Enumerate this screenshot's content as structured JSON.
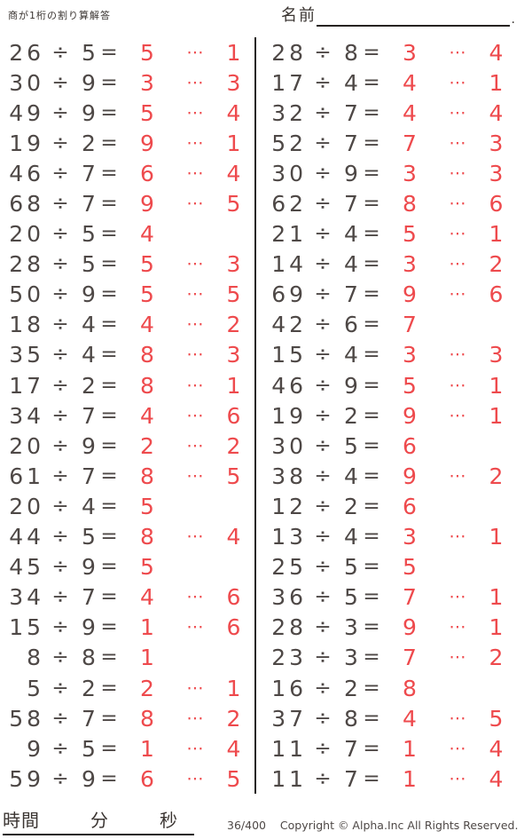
{
  "header": {
    "title": "商が1桁の割り算解答",
    "name_label": "名前",
    "name_line_end": "."
  },
  "symbols": {
    "divide": "÷",
    "equals": "=",
    "dots": "⋯"
  },
  "colors": {
    "ink": "#4e4846",
    "answer_red": "#ee4a4d",
    "line_black": "#262220"
  },
  "problems": {
    "left": [
      {
        "dividend": 26,
        "divisor": 5,
        "quotient": 5,
        "remainder": 1
      },
      {
        "dividend": 30,
        "divisor": 9,
        "quotient": 3,
        "remainder": 3
      },
      {
        "dividend": 49,
        "divisor": 9,
        "quotient": 5,
        "remainder": 4
      },
      {
        "dividend": 19,
        "divisor": 2,
        "quotient": 9,
        "remainder": 1
      },
      {
        "dividend": 46,
        "divisor": 7,
        "quotient": 6,
        "remainder": 4
      },
      {
        "dividend": 68,
        "divisor": 7,
        "quotient": 9,
        "remainder": 5
      },
      {
        "dividend": 20,
        "divisor": 5,
        "quotient": 4,
        "remainder": null
      },
      {
        "dividend": 28,
        "divisor": 5,
        "quotient": 5,
        "remainder": 3
      },
      {
        "dividend": 50,
        "divisor": 9,
        "quotient": 5,
        "remainder": 5
      },
      {
        "dividend": 18,
        "divisor": 4,
        "quotient": 4,
        "remainder": 2
      },
      {
        "dividend": 35,
        "divisor": 4,
        "quotient": 8,
        "remainder": 3
      },
      {
        "dividend": 17,
        "divisor": 2,
        "quotient": 8,
        "remainder": 1
      },
      {
        "dividend": 34,
        "divisor": 7,
        "quotient": 4,
        "remainder": 6
      },
      {
        "dividend": 20,
        "divisor": 9,
        "quotient": 2,
        "remainder": 2
      },
      {
        "dividend": 61,
        "divisor": 7,
        "quotient": 8,
        "remainder": 5
      },
      {
        "dividend": 20,
        "divisor": 4,
        "quotient": 5,
        "remainder": null
      },
      {
        "dividend": 44,
        "divisor": 5,
        "quotient": 8,
        "remainder": 4
      },
      {
        "dividend": 45,
        "divisor": 9,
        "quotient": 5,
        "remainder": null
      },
      {
        "dividend": 34,
        "divisor": 7,
        "quotient": 4,
        "remainder": 6
      },
      {
        "dividend": 15,
        "divisor": 9,
        "quotient": 1,
        "remainder": 6
      },
      {
        "dividend": 8,
        "divisor": 8,
        "quotient": 1,
        "remainder": null
      },
      {
        "dividend": 5,
        "divisor": 2,
        "quotient": 2,
        "remainder": 1
      },
      {
        "dividend": 58,
        "divisor": 7,
        "quotient": 8,
        "remainder": 2
      },
      {
        "dividend": 9,
        "divisor": 5,
        "quotient": 1,
        "remainder": 4
      },
      {
        "dividend": 59,
        "divisor": 9,
        "quotient": 6,
        "remainder": 5
      }
    ],
    "right": [
      {
        "dividend": 28,
        "divisor": 8,
        "quotient": 3,
        "remainder": 4
      },
      {
        "dividend": 17,
        "divisor": 4,
        "quotient": 4,
        "remainder": 1
      },
      {
        "dividend": 32,
        "divisor": 7,
        "quotient": 4,
        "remainder": 4
      },
      {
        "dividend": 52,
        "divisor": 7,
        "quotient": 7,
        "remainder": 3
      },
      {
        "dividend": 30,
        "divisor": 9,
        "quotient": 3,
        "remainder": 3
      },
      {
        "dividend": 62,
        "divisor": 7,
        "quotient": 8,
        "remainder": 6
      },
      {
        "dividend": 21,
        "divisor": 4,
        "quotient": 5,
        "remainder": 1
      },
      {
        "dividend": 14,
        "divisor": 4,
        "quotient": 3,
        "remainder": 2
      },
      {
        "dividend": 69,
        "divisor": 7,
        "quotient": 9,
        "remainder": 6
      },
      {
        "dividend": 42,
        "divisor": 6,
        "quotient": 7,
        "remainder": null
      },
      {
        "dividend": 15,
        "divisor": 4,
        "quotient": 3,
        "remainder": 3
      },
      {
        "dividend": 46,
        "divisor": 9,
        "quotient": 5,
        "remainder": 1
      },
      {
        "dividend": 19,
        "divisor": 2,
        "quotient": 9,
        "remainder": 1
      },
      {
        "dividend": 30,
        "divisor": 5,
        "quotient": 6,
        "remainder": null
      },
      {
        "dividend": 38,
        "divisor": 4,
        "quotient": 9,
        "remainder": 2
      },
      {
        "dividend": 12,
        "divisor": 2,
        "quotient": 6,
        "remainder": null
      },
      {
        "dividend": 13,
        "divisor": 4,
        "quotient": 3,
        "remainder": 1
      },
      {
        "dividend": 25,
        "divisor": 5,
        "quotient": 5,
        "remainder": null
      },
      {
        "dividend": 36,
        "divisor": 5,
        "quotient": 7,
        "remainder": 1
      },
      {
        "dividend": 28,
        "divisor": 3,
        "quotient": 9,
        "remainder": 1
      },
      {
        "dividend": 23,
        "divisor": 3,
        "quotient": 7,
        "remainder": 2
      },
      {
        "dividend": 16,
        "divisor": 2,
        "quotient": 8,
        "remainder": null
      },
      {
        "dividend": 37,
        "divisor": 8,
        "quotient": 4,
        "remainder": 5
      },
      {
        "dividend": 11,
        "divisor": 7,
        "quotient": 1,
        "remainder": 4
      },
      {
        "dividend": 11,
        "divisor": 7,
        "quotient": 1,
        "remainder": 4
      }
    ]
  },
  "footer": {
    "time_label": "時間",
    "minutes_label": "分",
    "seconds_label": "秒",
    "page_number": "36/400",
    "copyright": "Copyright ©  Alpha.Inc All Rights Reserved."
  }
}
